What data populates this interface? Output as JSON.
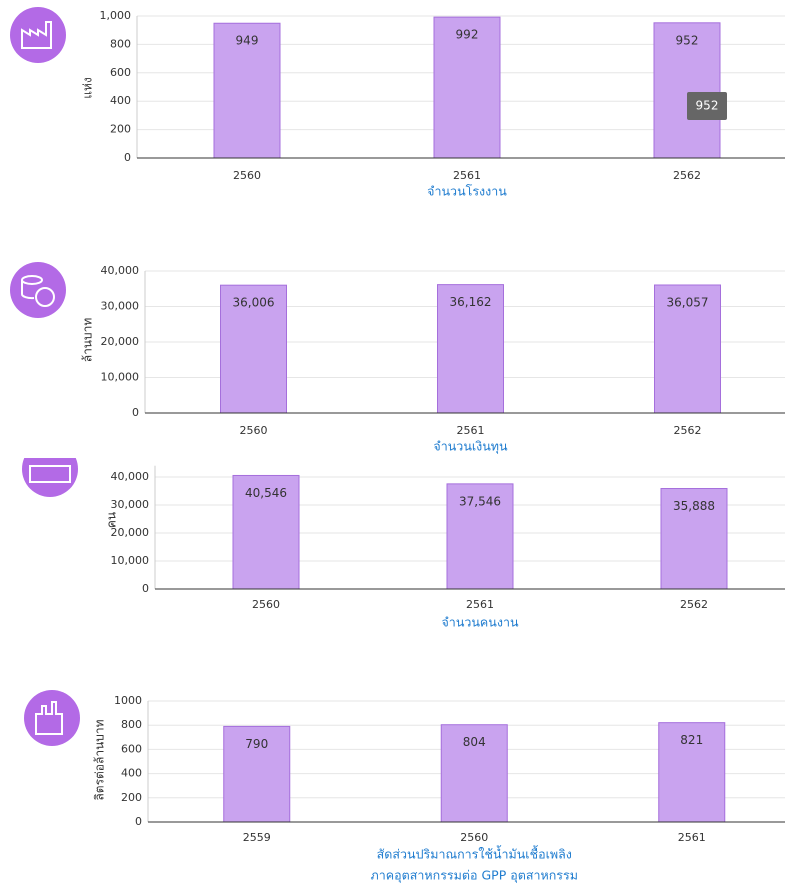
{
  "chart_data": [
    {
      "type": "bar",
      "y_label": "แห่ง",
      "x_label": "จำนวนโรงงาน",
      "categories": [
        "2560",
        "2561",
        "2562"
      ],
      "values": [
        949,
        992,
        952
      ],
      "value_labels": [
        "949",
        "992",
        "952"
      ],
      "color": "#c9a3ef",
      "ylim": [
        0,
        1000
      ],
      "yticks": [
        0,
        200,
        400,
        600,
        800,
        {
          "value": 1000,
          "label": "1,000"
        }
      ],
      "grid": true,
      "tooltip": "952"
    },
    {
      "type": "bar",
      "y_label": "ล้านบาท",
      "x_label": "จำนวนเงินทุน",
      "categories": [
        "2560",
        "2561",
        "2562"
      ],
      "values": [
        36006,
        36162,
        36057
      ],
      "value_labels": [
        "36,006",
        "36,162",
        "36,057"
      ],
      "color": "#c9a3ef",
      "ylim": [
        0,
        40000
      ],
      "yticks": [
        0,
        {
          "value": 10000,
          "label": "10,000"
        },
        {
          "value": 20000,
          "label": "20,000"
        },
        {
          "value": 30000,
          "label": "30,000"
        },
        {
          "value": 40000,
          "label": "40,000"
        }
      ],
      "grid": true
    },
    {
      "type": "bar",
      "y_label": "คน",
      "x_label": "จำนวนคนงาน",
      "categories": [
        "2560",
        "2561",
        "2562"
      ],
      "values": [
        40546,
        37546,
        35888
      ],
      "value_labels": [
        "40,546",
        "37,546",
        "35,888"
      ],
      "color": "#c9a3ef",
      "ylim": [
        0,
        44000
      ],
      "yticks": [
        0,
        {
          "value": 10000,
          "label": "10,000"
        },
        {
          "value": 20000,
          "label": "20,000"
        },
        {
          "value": 30000,
          "label": "30,000"
        },
        {
          "value": 40000,
          "label": "40,000"
        }
      ],
      "grid": true
    },
    {
      "type": "bar",
      "y_label": "ลิตรต่อล้านบาท",
      "x_label": [
        "สัดส่วนปริมาณการใช้น้ำมันเชื้อเพลิง",
        "ภาคอุตสาหกรรมต่อ GPP อุตสาหกรรม"
      ],
      "categories": [
        "2559",
        "2560",
        "2561"
      ],
      "values": [
        790,
        804,
        821
      ],
      "value_labels": [
        "790",
        "804",
        "821"
      ],
      "color": "#c9a3ef",
      "ylim": [
        0,
        1000
      ],
      "yticks": [
        0,
        200,
        400,
        600,
        800,
        1000
      ],
      "grid": true
    }
  ]
}
